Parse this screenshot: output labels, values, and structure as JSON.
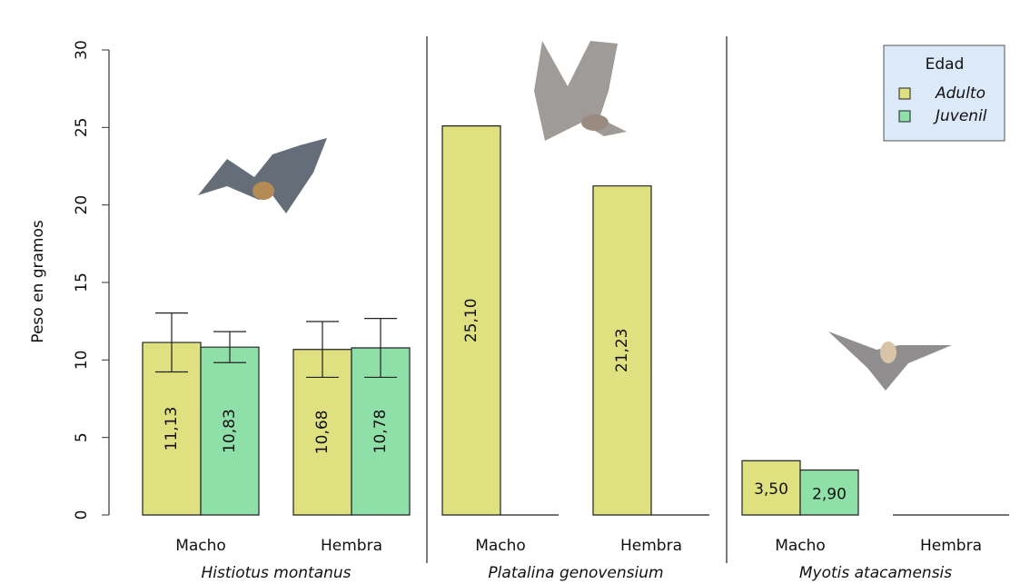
{
  "chart_data": {
    "type": "bar",
    "ylabel": "Peso en gramos",
    "ylim": [
      0,
      30
    ],
    "yticks": [
      0,
      5,
      10,
      15,
      20,
      25,
      30
    ],
    "legend": {
      "title": "Edad",
      "position": "top-right"
    },
    "series": [
      {
        "name": "Adulto",
        "color": "#dfe07f"
      },
      {
        "name": "Juvenil",
        "color": "#8fdfa9"
      }
    ],
    "panels": [
      {
        "title": "Histiotus montanus",
        "categories": [
          "Macho",
          "Hembra"
        ],
        "series": [
          {
            "values": [
              11.13,
              10.68
            ],
            "value_labels": [
              "11,13",
              "10,68"
            ],
            "errors": [
              1.9,
              1.8
            ]
          },
          {
            "values": [
              10.83,
              10.78
            ],
            "value_labels": [
              "10,83",
              "10,78"
            ],
            "errors": [
              1.0,
              1.9
            ]
          }
        ]
      },
      {
        "title": "Platalina genovensium",
        "categories": [
          "Macho",
          "Hembra"
        ],
        "series": [
          {
            "values": [
              25.1,
              21.23
            ],
            "value_labels": [
              "25,10",
              "21,23"
            ]
          },
          {
            "values": [
              0,
              0
            ],
            "value_labels": [
              null,
              null
            ]
          }
        ]
      },
      {
        "title": "Myotis atacamensis",
        "categories": [
          "Macho",
          "Hembra"
        ],
        "series": [
          {
            "values": [
              3.5,
              0
            ],
            "value_labels": [
              "3,50",
              null
            ]
          },
          {
            "values": [
              2.9,
              0
            ],
            "value_labels": [
              "2,90",
              null
            ]
          }
        ]
      }
    ]
  }
}
